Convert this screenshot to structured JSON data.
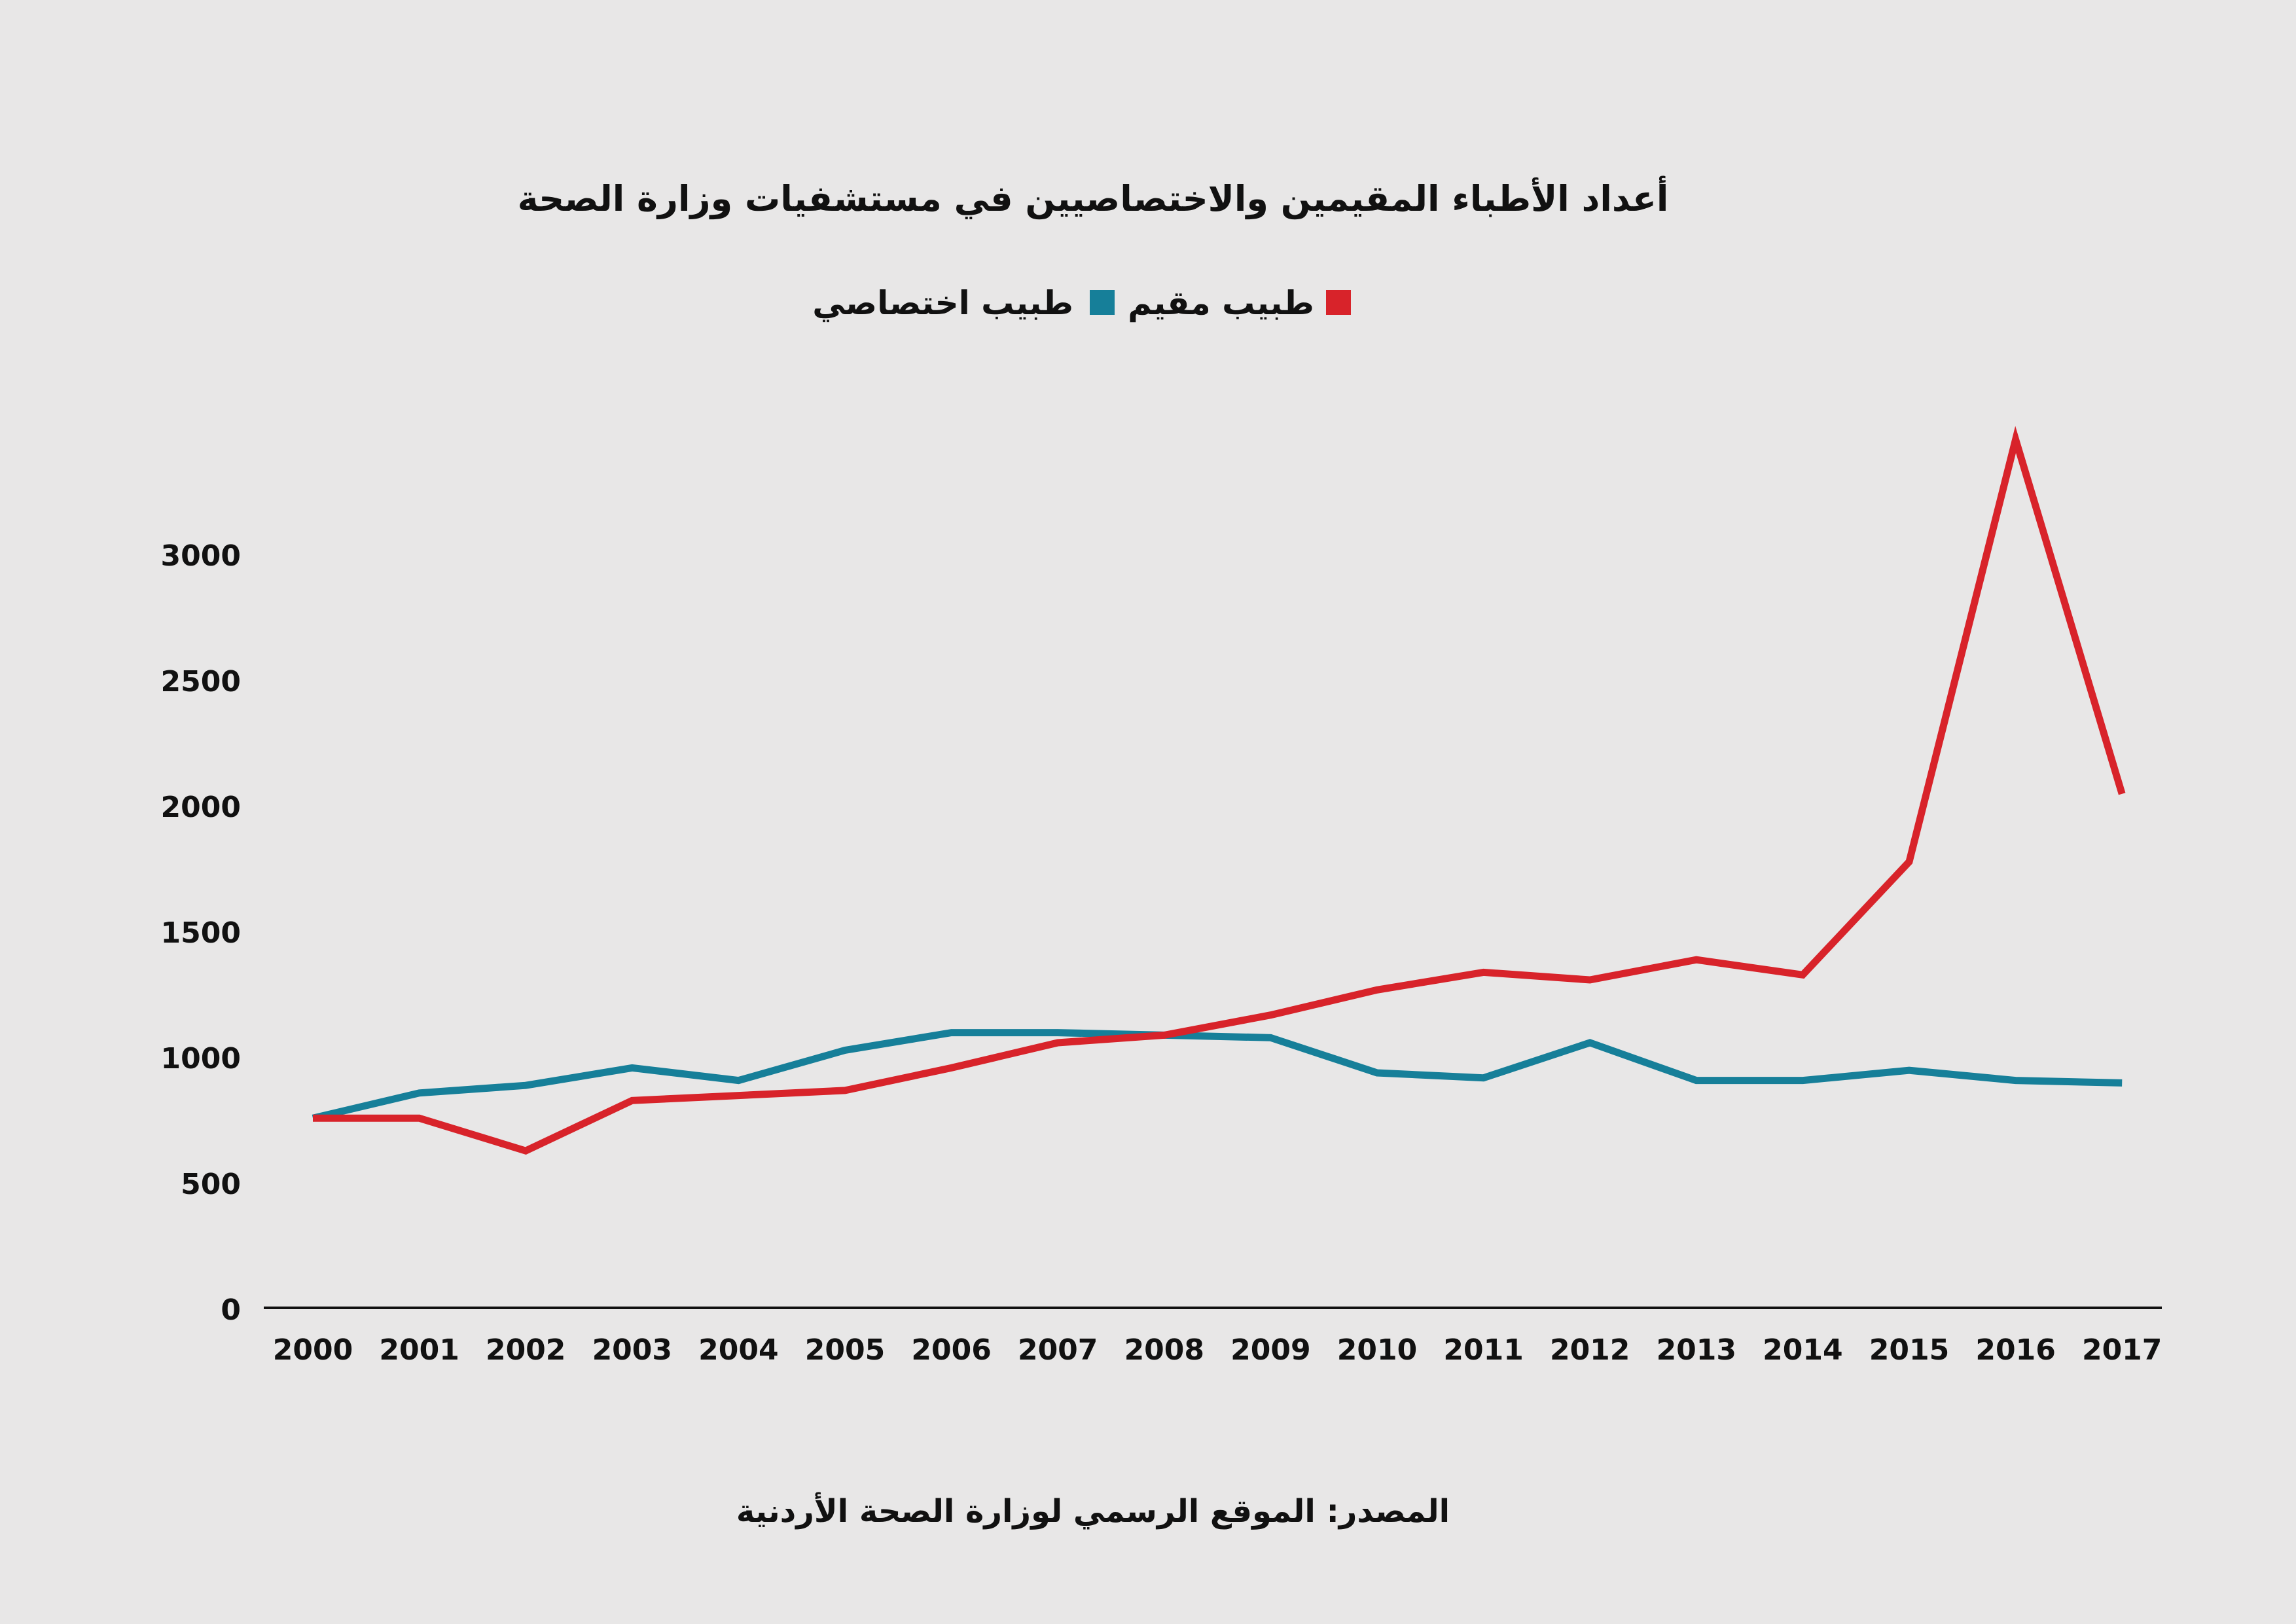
{
  "chart_data": {
    "type": "line",
    "title": "أعداد الأطباء المقيمين والاختصاصيين في مستشفيات وزارة الصحة",
    "source": "المصدر: الموقع الرسمي لوزارة الصحة الأردنية",
    "xlabel": "",
    "ylabel": "",
    "ylim": [
      0,
      3000
    ],
    "yticks": [
      "0",
      "500",
      "1000",
      "1500",
      "2000",
      "2500",
      "3000"
    ],
    "categories": [
      "2000",
      "2001",
      "2002",
      "2003",
      "2004",
      "2005",
      "2006",
      "2007",
      "2008",
      "2009",
      "2010",
      "2011",
      "2012",
      "2013",
      "2014",
      "2015",
      "2016",
      "2017"
    ],
    "legend_position": "top-center",
    "grid": false,
    "series": [
      {
        "name": "طبيب مقيم",
        "color": "#d8232a",
        "values": [
          760,
          760,
          630,
          830,
          850,
          870,
          960,
          1060,
          1090,
          1170,
          1270,
          1340,
          1310,
          1390,
          1330,
          1780,
          3460,
          2050
        ]
      },
      {
        "name": "طبيب اختصاصي",
        "color": "#167f99",
        "values": [
          760,
          860,
          890,
          960,
          910,
          1030,
          1100,
          1100,
          1090,
          1080,
          940,
          920,
          1060,
          910,
          910,
          950,
          910,
          900
        ]
      }
    ]
  }
}
